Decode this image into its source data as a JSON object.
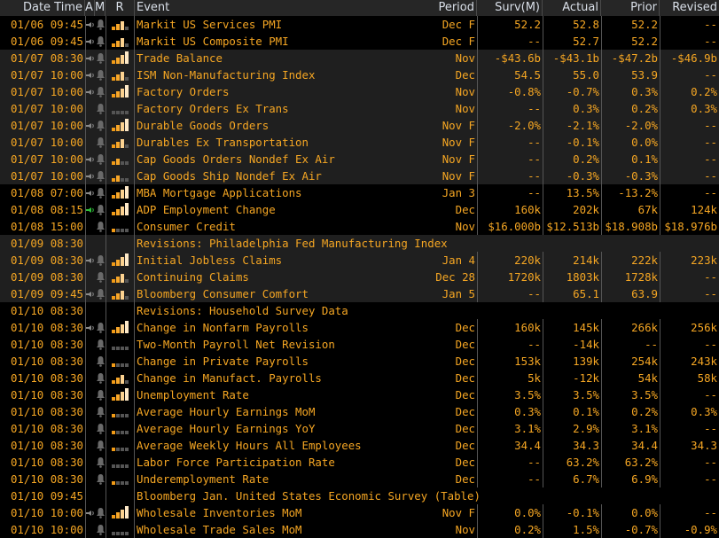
{
  "header": {
    "date_time": "Date Time",
    "a": "A",
    "m": "M",
    "r": "R",
    "event": "Event",
    "period": "Period",
    "survey": "Surv(M)",
    "actual": "Actual",
    "prior": "Prior",
    "revised": "Revised"
  },
  "colors": {
    "text": "#f5a623",
    "header_text": "#d9dfe8",
    "bar1": "#f29b16",
    "bar2": "#f7a72a",
    "bar3": "#fcd290",
    "bar4": "#fee9c8",
    "bar_off": "#555555",
    "speaker": "#8a8a8a",
    "speaker_active": "#2fbf3a",
    "bell": "#6a6a6a"
  },
  "rows": [
    {
      "dt": "01/06 09:45",
      "alert": "on",
      "bell": true,
      "rel": 3,
      "event": "Markit US Services PMI",
      "period": "Dec F",
      "surv": "52.2",
      "actual": "52.8",
      "prior": "52.2",
      "revised": "--"
    },
    {
      "dt": "01/06 09:45",
      "alert": "on",
      "bell": true,
      "rel": 3,
      "event": "Markit US Composite PMI",
      "period": "Dec F",
      "surv": "--",
      "actual": "52.7",
      "prior": "52.2",
      "revised": "--"
    },
    {
      "dt": "01/07 08:30",
      "alert": "on",
      "bell": true,
      "rel": 4,
      "event": "Trade Balance",
      "period": "Nov",
      "surv": "-$43.6b",
      "actual": "-$43.1b",
      "prior": "-$47.2b",
      "revised": "-$46.9b"
    },
    {
      "dt": "01/07 10:00",
      "alert": "on",
      "bell": true,
      "rel": 3,
      "event": "ISM Non-Manufacturing Index",
      "period": "Dec",
      "surv": "54.5",
      "actual": "55.0",
      "prior": "53.9",
      "revised": "--"
    },
    {
      "dt": "01/07 10:00",
      "alert": "on",
      "bell": true,
      "rel": 4,
      "event": "Factory Orders",
      "period": "Nov",
      "surv": "-0.8%",
      "actual": "-0.7%",
      "prior": "0.3%",
      "revised": "0.2%"
    },
    {
      "dt": "01/07 10:00",
      "alert": "off",
      "bell": true,
      "rel": 0,
      "event": "Factory Orders Ex Trans",
      "period": "Nov",
      "surv": "--",
      "actual": "0.3%",
      "prior": "0.2%",
      "revised": "0.3%"
    },
    {
      "dt": "01/07 10:00",
      "alert": "on",
      "bell": true,
      "rel": 4,
      "event": "Durable Goods Orders",
      "period": "Nov F",
      "surv": "-2.0%",
      "actual": "-2.1%",
      "prior": "-2.0%",
      "revised": "--"
    },
    {
      "dt": "01/07 10:00",
      "alert": "off",
      "bell": true,
      "rel": 3,
      "event": "Durables Ex Transportation",
      "period": "Nov F",
      "surv": "--",
      "actual": "-0.1%",
      "prior": "0.0%",
      "revised": "--"
    },
    {
      "dt": "01/07 10:00",
      "alert": "on",
      "bell": true,
      "rel": 2,
      "event": "Cap Goods Orders Nondef Ex Air",
      "period": "Nov F",
      "surv": "--",
      "actual": "0.2%",
      "prior": "0.1%",
      "revised": "--"
    },
    {
      "dt": "01/07 10:00",
      "alert": "on",
      "bell": true,
      "rel": 2,
      "event": "Cap Goods Ship Nondef Ex Air",
      "period": "Nov F",
      "surv": "--",
      "actual": "-0.3%",
      "prior": "-0.3%",
      "revised": "--"
    },
    {
      "dt": "01/08 07:00",
      "alert": "on",
      "bell": true,
      "rel": 4,
      "event": "MBA Mortgage Applications",
      "period": "Jan 3",
      "surv": "--",
      "actual": "13.5%",
      "prior": "-13.2%",
      "revised": "--"
    },
    {
      "dt": "01/08 08:15",
      "alert": "active",
      "bell": true,
      "rel": 4,
      "event": "ADP Employment Change",
      "period": "Dec",
      "surv": "160k",
      "actual": "202k",
      "prior": "67k",
      "revised": "124k"
    },
    {
      "dt": "01/08 15:00",
      "alert": "off",
      "bell": true,
      "rel": 1,
      "event": "Consumer Credit",
      "period": "Nov",
      "surv": "$16.000b",
      "actual": "$12.513b",
      "prior": "$18.908b",
      "revised": "$18.976b"
    },
    {
      "dt": "01/09 08:30",
      "span": true,
      "event": "Revisions: Philadelphia Fed Manufacturing Index"
    },
    {
      "dt": "01/09 08:30",
      "alert": "on",
      "bell": true,
      "rel": 4,
      "event": "Initial Jobless Claims",
      "period": "Jan 4",
      "surv": "220k",
      "actual": "214k",
      "prior": "222k",
      "revised": "223k"
    },
    {
      "dt": "01/09 08:30",
      "alert": "off",
      "bell": true,
      "rel": 3,
      "event": "Continuing Claims",
      "period": "Dec 28",
      "surv": "1720k",
      "actual": "1803k",
      "prior": "1728k",
      "revised": "--"
    },
    {
      "dt": "01/09 09:45",
      "alert": "on",
      "bell": true,
      "rel": 3,
      "event": "Bloomberg Consumer Comfort",
      "period": "Jan 5",
      "surv": "--",
      "actual": "65.1",
      "prior": "63.9",
      "revised": "--"
    },
    {
      "dt": "01/10 08:30",
      "span": true,
      "event": "Revisions: Household Survey Data"
    },
    {
      "dt": "01/10 08:30",
      "alert": "on",
      "bell": true,
      "rel": 4,
      "event": "Change in Nonfarm Payrolls",
      "period": "Dec",
      "surv": "160k",
      "actual": "145k",
      "prior": "266k",
      "revised": "256k"
    },
    {
      "dt": "01/10 08:30",
      "alert": "off",
      "bell": true,
      "rel": 0,
      "event": "Two-Month Payroll Net Revision",
      "period": "Dec",
      "surv": "--",
      "actual": "-14k",
      "prior": "--",
      "revised": "--"
    },
    {
      "dt": "01/10 08:30",
      "alert": "off",
      "bell": true,
      "rel": 1,
      "event": "Change in Private Payrolls",
      "period": "Dec",
      "surv": "153k",
      "actual": "139k",
      "prior": "254k",
      "revised": "243k"
    },
    {
      "dt": "01/10 08:30",
      "alert": "off",
      "bell": true,
      "rel": 3,
      "event": "Change in Manufact. Payrolls",
      "period": "Dec",
      "surv": "5k",
      "actual": "-12k",
      "prior": "54k",
      "revised": "58k"
    },
    {
      "dt": "01/10 08:30",
      "alert": "off",
      "bell": true,
      "rel": 4,
      "event": "Unemployment Rate",
      "period": "Dec",
      "surv": "3.5%",
      "actual": "3.5%",
      "prior": "3.5%",
      "revised": "--"
    },
    {
      "dt": "01/10 08:30",
      "alert": "off",
      "bell": true,
      "rel": 1,
      "event": "Average Hourly Earnings MoM",
      "period": "Dec",
      "surv": "0.3%",
      "actual": "0.1%",
      "prior": "0.2%",
      "revised": "0.3%"
    },
    {
      "dt": "01/10 08:30",
      "alert": "off",
      "bell": true,
      "rel": 1,
      "event": "Average Hourly Earnings YoY",
      "period": "Dec",
      "surv": "3.1%",
      "actual": "2.9%",
      "prior": "3.1%",
      "revised": "--"
    },
    {
      "dt": "01/10 08:30",
      "alert": "off",
      "bell": true,
      "rel": 1,
      "event": "Average Weekly Hours All Employees",
      "period": "Dec",
      "surv": "34.4",
      "actual": "34.3",
      "prior": "34.4",
      "revised": "34.3"
    },
    {
      "dt": "01/10 08:30",
      "alert": "off",
      "bell": true,
      "rel": 0,
      "event": "Labor Force Participation Rate",
      "period": "Dec",
      "surv": "--",
      "actual": "63.2%",
      "prior": "63.2%",
      "revised": "--"
    },
    {
      "dt": "01/10 08:30",
      "alert": "off",
      "bell": true,
      "rel": 1,
      "event": "Underemployment Rate",
      "period": "Dec",
      "surv": "--",
      "actual": "6.7%",
      "prior": "6.9%",
      "revised": "--"
    },
    {
      "dt": "01/10 09:45",
      "span": true,
      "event": "Bloomberg Jan. United States Economic Survey (Table)"
    },
    {
      "dt": "01/10 10:00",
      "alert": "on",
      "bell": true,
      "rel": 4,
      "event": "Wholesale Inventories MoM",
      "period": "Nov F",
      "surv": "0.0%",
      "actual": "-0.1%",
      "prior": "0.0%",
      "revised": "--"
    },
    {
      "dt": "01/10 10:00",
      "alert": "off",
      "bell": true,
      "rel": 0,
      "event": "Wholesale Trade Sales MoM",
      "period": "Nov",
      "surv": "0.2%",
      "actual": "1.5%",
      "prior": "-0.7%",
      "revised": "-0.9%"
    }
  ]
}
